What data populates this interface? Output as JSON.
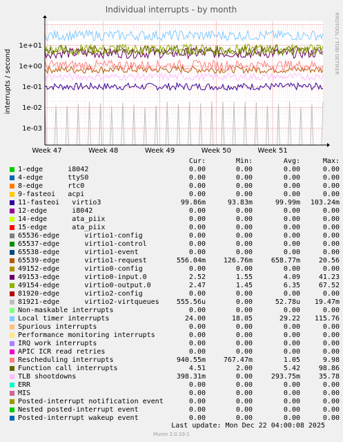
{
  "chart_data": {
    "type": "line",
    "title": "Individual interrupts - by month",
    "ylabel": "interrupts / second",
    "xlabel": "",
    "yscale": "log",
    "ylim": [
      0.00015,
      150
    ],
    "y_ticks": [
      {
        "value": 0.001,
        "label": "1e-03"
      },
      {
        "value": 0.01,
        "label": "1e-02"
      },
      {
        "value": 0.1,
        "label": "1e-01"
      },
      {
        "value": 1,
        "label": "1e+00"
      },
      {
        "value": 10,
        "label": "1e+01"
      }
    ],
    "x_ticks": [
      "Week 47",
      "Week 48",
      "Week 49",
      "Week 50",
      "Week 51"
    ],
    "grid": true,
    "columns": [
      "Cur:",
      "Min:",
      "Avg:",
      "Max:"
    ],
    "series": [
      {
        "name": "1-edge      i8042",
        "color": "#00cc00",
        "values": [
          "0.00",
          "0.00",
          "0.00",
          "0.00"
        ]
      },
      {
        "name": "4-edge      ttyS0",
        "color": "#0066b3",
        "values": [
          "0.00",
          "0.00",
          "0.00",
          "0.00"
        ]
      },
      {
        "name": "8-edge      rtc0",
        "color": "#ff8000",
        "values": [
          "0.00",
          "0.00",
          "0.00",
          "0.00"
        ]
      },
      {
        "name": "9-fasteoi   acpi",
        "color": "#ffcc00",
        "values": [
          "0.00",
          "0.00",
          "0.00",
          "0.00"
        ]
      },
      {
        "name": "11-fasteoi   virtio3",
        "color": "#330099",
        "values": [
          "99.86m",
          "93.83m",
          "99.99m",
          "103.24m"
        ]
      },
      {
        "name": "12-edge      i8042",
        "color": "#990099",
        "values": [
          "0.00",
          "0.00",
          "0.00",
          "0.00"
        ]
      },
      {
        "name": "14-edge      ata_piix",
        "color": "#ccff00",
        "values": [
          "0.00",
          "0.00",
          "0.00",
          "0.00"
        ]
      },
      {
        "name": "15-edge      ata_piix",
        "color": "#ff0000",
        "values": [
          "0.00",
          "0.00",
          "0.00",
          "0.00"
        ]
      },
      {
        "name": "65536-edge      virtio1-config",
        "color": "#808080",
        "values": [
          "0.00",
          "0.00",
          "0.00",
          "0.00"
        ]
      },
      {
        "name": "65537-edge      virtio1-control",
        "color": "#008f00",
        "values": [
          "0.00",
          "0.00",
          "0.00",
          "0.00"
        ]
      },
      {
        "name": "65538-edge      virtio1-event",
        "color": "#00487d",
        "values": [
          "0.00",
          "0.00",
          "0.00",
          "0.00"
        ]
      },
      {
        "name": "65539-edge      virtio1-request",
        "color": "#b35a00",
        "values": [
          "556.04m",
          "126.76m",
          "658.77m",
          "20.56"
        ]
      },
      {
        "name": "49152-edge      virtio0-config",
        "color": "#b38f00",
        "values": [
          "0.00",
          "0.00",
          "0.00",
          "0.00"
        ]
      },
      {
        "name": "49153-edge      virtio0-input.0",
        "color": "#6b006b",
        "values": [
          "2.52",
          "1.55",
          "4.09",
          "41.23"
        ]
      },
      {
        "name": "49154-edge      virtio0-output.0",
        "color": "#8fb300",
        "values": [
          "2.47",
          "1.45",
          "6.35",
          "67.52"
        ]
      },
      {
        "name": "81920-edge      virtio2-config",
        "color": "#b30000",
        "values": [
          "0.00",
          "0.00",
          "0.00",
          "0.00"
        ]
      },
      {
        "name": "81921-edge      virtio2-virtqueues",
        "color": "#bebebe",
        "values": [
          "555.56u",
          "0.00",
          "52.78u",
          "19.47m"
        ]
      },
      {
        "name": "Non-maskable interrupts",
        "color": "#80ff80",
        "values": [
          "0.00",
          "0.00",
          "0.00",
          "0.00"
        ]
      },
      {
        "name": "Local timer interrupts",
        "color": "#80c9ff",
        "values": [
          "24.00",
          "18.05",
          "29.22",
          "115.76"
        ]
      },
      {
        "name": "Spurious interrupts",
        "color": "#ffc080",
        "values": [
          "0.00",
          "0.00",
          "0.00",
          "0.00"
        ]
      },
      {
        "name": "Performance monitoring interrupts",
        "color": "#ffe680",
        "values": [
          "0.00",
          "0.00",
          "0.00",
          "0.00"
        ]
      },
      {
        "name": "IRQ work interrupts",
        "color": "#aa80ff",
        "values": [
          "0.00",
          "0.00",
          "0.00",
          "0.00"
        ]
      },
      {
        "name": "APIC ICR read retries",
        "color": "#ee00cc",
        "values": [
          "0.00",
          "0.00",
          "0.00",
          "0.00"
        ]
      },
      {
        "name": "Rescheduling interrupts",
        "color": "#ff8080",
        "values": [
          "940.55m",
          "767.47m",
          "1.05",
          "9.98"
        ]
      },
      {
        "name": "Function call interrupts",
        "color": "#666600",
        "values": [
          "4.51",
          "2.00",
          "5.42",
          "98.86"
        ]
      },
      {
        "name": "TLB shootdowns",
        "color": "#ffbfff",
        "values": [
          "398.31m",
          "0.00",
          "293.75m",
          "35.78"
        ]
      },
      {
        "name": "ERR",
        "color": "#00ffcc",
        "values": [
          "0.00",
          "0.00",
          "0.00",
          "0.00"
        ]
      },
      {
        "name": "MIS",
        "color": "#cc6699",
        "values": [
          "0.00",
          "0.00",
          "0.00",
          "0.00"
        ]
      },
      {
        "name": "Posted-interrupt notification event",
        "color": "#999900",
        "values": [
          "0.00",
          "0.00",
          "0.00",
          "0.00"
        ]
      },
      {
        "name": "Nested posted-interrupt event",
        "color": "#00cc00",
        "values": [
          "0.00",
          "0.00",
          "0.00",
          "0.00"
        ]
      },
      {
        "name": "Posted-interrupt wakeup event",
        "color": "#0066b3",
        "values": [
          "0.00",
          "0.00",
          "0.00",
          "0.00"
        ]
      }
    ]
  },
  "watermark": "RRDTOOL / TOBI OETIKER",
  "last_update": "Last update:  Mon Dec 22 04:00:08 2025",
  "munin_version": "Munin 2.0.33-1"
}
